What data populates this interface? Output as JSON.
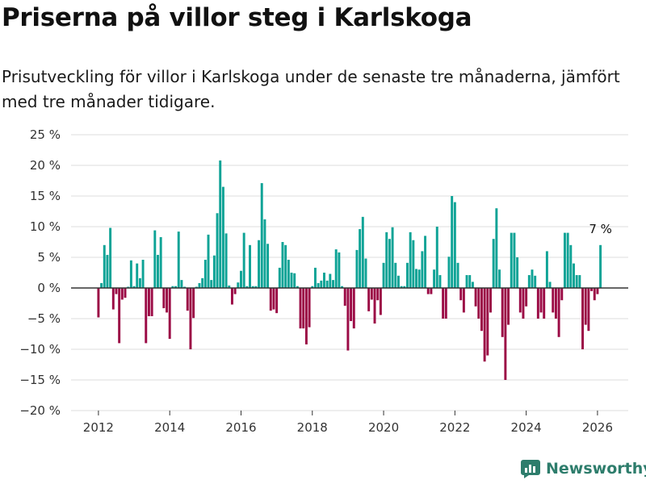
{
  "title": "Priserna på villor steg i Karlskoga",
  "subtitle": "Prisutveckling för villor i Karlskoga under de senaste tre månaderna, jämfört med tre månader tidigare.",
  "brand": {
    "name": "Newsworthy",
    "icon": "newsworthy-logo-icon"
  },
  "colors": {
    "positive": "#0ea396",
    "negative": "#9b0a45",
    "grid": "#dddddd",
    "zero_line": "#333333",
    "brand": "#2e7d6c"
  },
  "chart_data": {
    "type": "bar",
    "title": "Priserna på villor steg i Karlskoga",
    "xlabel": "",
    "ylabel": "",
    "ylim": [
      -20,
      25
    ],
    "y_ticks": [
      -20,
      -15,
      -10,
      -5,
      0,
      5,
      10,
      15,
      20,
      25
    ],
    "y_tick_labels": [
      "−20 %",
      "−15 %",
      "−10 %",
      "−5 %",
      "0 %",
      "5 %",
      "10 %",
      "15 %",
      "20 %",
      "25 %"
    ],
    "x_ticks": [
      2012,
      2014,
      2016,
      2018,
      2020,
      2022,
      2024,
      2026
    ],
    "x_tick_labels": [
      "2012",
      "2014",
      "2016",
      "2018",
      "2020",
      "2022",
      "2024",
      "2026"
    ],
    "start": {
      "year": 2012,
      "month": 1
    },
    "annotation": {
      "label": "7 %",
      "index": 169
    },
    "values": [
      -4.8,
      0.8,
      7.0,
      5.4,
      9.8,
      -3.5,
      -1.0,
      -9.0,
      -1.9,
      -1.6,
      0.2,
      4.5,
      0.3,
      4.0,
      1.6,
      4.6,
      -9.0,
      -4.6,
      -4.6,
      9.4,
      5.4,
      8.3,
      -3.3,
      -4.0,
      -8.3,
      0.3,
      0.3,
      9.2,
      1.3,
      0.2,
      -3.7,
      -10.0,
      -4.9,
      0.2,
      0.8,
      1.6,
      4.6,
      8.7,
      1.3,
      5.3,
      12.2,
      20.8,
      16.5,
      8.9,
      0.4,
      -2.7,
      -1.0,
      0.9,
      2.8,
      9.0,
      0.3,
      7.0,
      0.3,
      0.3,
      7.8,
      17.1,
      11.2,
      7.2,
      -3.7,
      -3.5,
      -4.1,
      3.3,
      7.5,
      7.0,
      4.6,
      2.5,
      2.4,
      0.3,
      -6.6,
      -6.6,
      -9.2,
      -6.4,
      0.3,
      3.3,
      0.8,
      1.2,
      2.5,
      1.2,
      2.3,
      1.3,
      6.3,
      5.8,
      0.3,
      -2.9,
      -10.2,
      -5.4,
      -6.6,
      6.2,
      9.6,
      11.6,
      4.8,
      -3.8,
      -1.9,
      -5.8,
      -2.0,
      -4.4,
      4.1,
      9.1,
      8.0,
      9.9,
      4.1,
      2.0,
      0.3,
      0.3,
      4.1,
      9.1,
      7.8,
      3.1,
      3.0,
      6.0,
      8.5,
      -1.0,
      -1.0,
      3.0,
      10.0,
      2.1,
      -5.0,
      -5.0,
      5.1,
      15.0,
      14.0,
      4.1,
      -2.0,
      -4.0,
      2.1,
      2.1,
      1.0,
      -3.0,
      -5.0,
      -7.0,
      -12.0,
      -11.0,
      -4.0,
      8.0,
      13.0,
      3.0,
      -8.0,
      -15.0,
      -6.0,
      9.0,
      9.0,
      5.0,
      -4.0,
      -5.0,
      -3.0,
      2.1,
      3.0,
      2.0,
      -5.0,
      -4.0,
      -5.0,
      6.0,
      1.0,
      -4.0,
      -5.0,
      -8.0,
      -2.0,
      9.0,
      9.0,
      7.0,
      4.0,
      2.1,
      2.1,
      -10.0,
      -6.0,
      -7.0,
      -0.5,
      -2.0,
      -1.0,
      7.0
    ]
  }
}
